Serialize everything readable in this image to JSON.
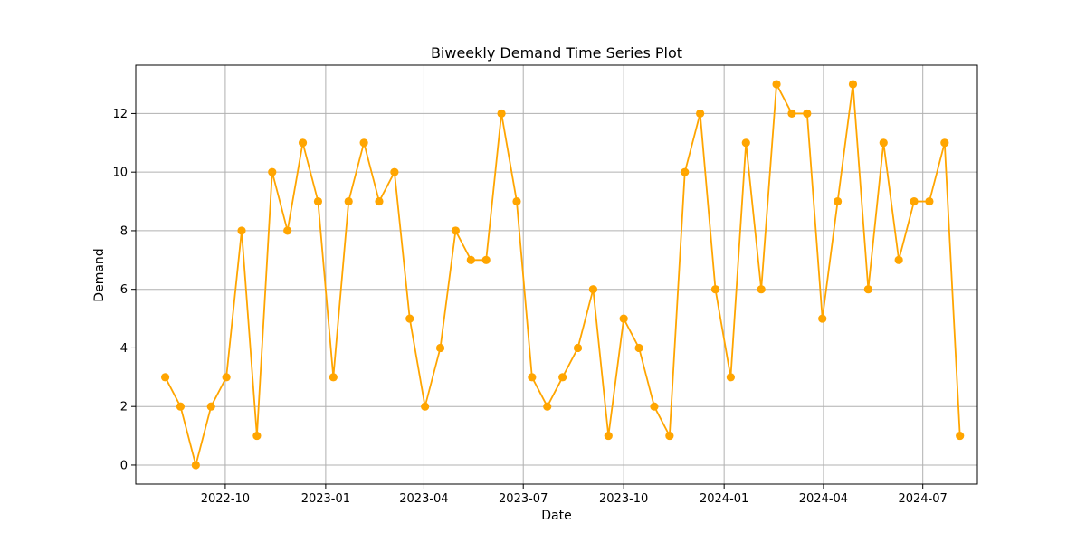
{
  "chart_data": {
    "type": "line",
    "title": "Biweekly Demand Time Series Plot",
    "xlabel": "Date",
    "ylabel": "Demand",
    "xlim": [
      "2022-07-11",
      "2024-08-20"
    ],
    "ylim": [
      -0.65,
      13.65
    ],
    "grid": true,
    "line_color": "#ffa500",
    "marker": "circle",
    "x_ticks": [
      {
        "date": "2022-10-01",
        "label": "2022-10"
      },
      {
        "date": "2023-01-01",
        "label": "2023-01"
      },
      {
        "date": "2023-04-01",
        "label": "2023-04"
      },
      {
        "date": "2023-07-01",
        "label": "2023-07"
      },
      {
        "date": "2023-10-01",
        "label": "2023-10"
      },
      {
        "date": "2024-01-01",
        "label": "2024-01"
      },
      {
        "date": "2024-04-01",
        "label": "2024-04"
      },
      {
        "date": "2024-07-01",
        "label": "2024-07"
      }
    ],
    "y_ticks": [
      0,
      2,
      4,
      6,
      8,
      10,
      12
    ],
    "x": [
      "2022-08-07",
      "2022-08-21",
      "2022-09-04",
      "2022-09-18",
      "2022-10-02",
      "2022-10-16",
      "2022-10-30",
      "2022-11-13",
      "2022-11-27",
      "2022-12-11",
      "2022-12-25",
      "2023-01-08",
      "2023-01-22",
      "2023-02-05",
      "2023-02-19",
      "2023-03-05",
      "2023-03-19",
      "2023-04-02",
      "2023-04-16",
      "2023-04-30",
      "2023-05-14",
      "2023-05-28",
      "2023-06-11",
      "2023-06-25",
      "2023-07-09",
      "2023-07-23",
      "2023-08-06",
      "2023-08-20",
      "2023-09-03",
      "2023-09-17",
      "2023-10-01",
      "2023-10-15",
      "2023-10-29",
      "2023-11-12",
      "2023-11-26",
      "2023-12-10",
      "2023-12-24",
      "2024-01-07",
      "2024-01-21",
      "2024-02-04",
      "2024-02-18",
      "2024-03-03",
      "2024-03-17",
      "2024-03-31",
      "2024-04-14",
      "2024-04-28",
      "2024-05-12",
      "2024-05-26",
      "2024-06-09",
      "2024-06-23",
      "2024-07-07",
      "2024-07-21",
      "2024-08-04"
    ],
    "y": [
      3,
      2,
      0,
      2,
      3,
      8,
      1,
      10,
      8,
      11,
      9,
      3,
      9,
      11,
      9,
      10,
      5,
      2,
      4,
      8,
      7,
      7,
      12,
      9,
      3,
      2,
      3,
      4,
      6,
      1,
      5,
      4,
      2,
      1,
      10,
      12,
      6,
      3,
      11,
      6,
      13,
      12,
      12,
      5,
      9,
      13,
      6,
      11,
      7,
      9,
      9,
      11,
      1
    ]
  }
}
